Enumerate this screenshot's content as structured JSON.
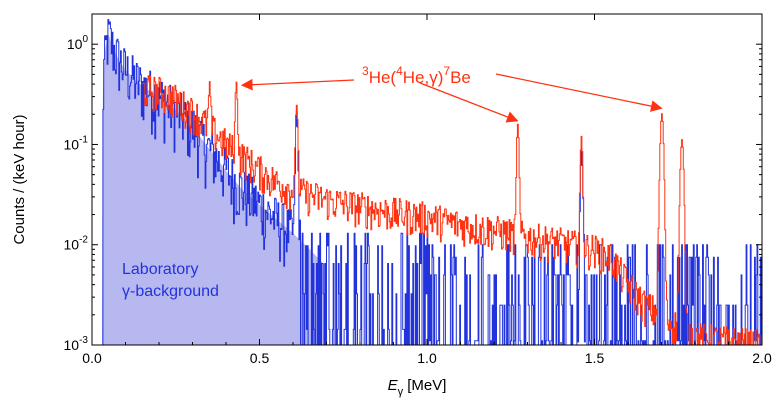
{
  "chart_data": {
    "type": "line",
    "xlabel": {
      "main": "E",
      "sub": "γ",
      "unit": "[MeV]"
    },
    "ylabel": "Counts / (keV hour)",
    "xlim": [
      0,
      2.0
    ],
    "ylim": [
      0.001,
      2.0
    ],
    "yscale": "log",
    "grid": false,
    "x_ticks": [
      {
        "value": 0.0,
        "label": "0.0"
      },
      {
        "value": 0.5,
        "label": "0.5"
      },
      {
        "value": 1.0,
        "label": "1.0"
      },
      {
        "value": 1.5,
        "label": "1.5"
      },
      {
        "value": 2.0,
        "label": "2.0"
      }
    ],
    "y_ticks": [
      {
        "value": 1,
        "base": "10",
        "exp": "0"
      },
      {
        "value": 0.1,
        "base": "10",
        "exp": "-1"
      },
      {
        "value": 0.01,
        "base": "10",
        "exp": "-2"
      },
      {
        "value": 0.001,
        "base": "10",
        "exp": "-3"
      }
    ],
    "reaction_label": {
      "parts": [
        {
          "t": "3",
          "sup": true
        },
        {
          "t": "He(",
          "sup": false
        },
        {
          "t": "4",
          "sup": true
        },
        {
          "t": "He,γ)",
          "sup": false
        },
        {
          "t": "7",
          "sup": true
        },
        {
          "t": "Be",
          "sup": false
        }
      ],
      "color": "#ff3311",
      "arrow_targets": [
        {
          "x": 0.43,
          "y": 0.34
        },
        {
          "x": 1.27,
          "y": 0.15
        },
        {
          "x": 1.7,
          "y": 0.2
        }
      ]
    },
    "background_label": {
      "lines": [
        "Laboratory",
        "γ-background"
      ],
      "color": "#2233dd"
    },
    "series": [
      {
        "name": "3He(4He,γ)7Be",
        "color": "#ff3311",
        "x_start": 0.15,
        "continuum": [
          [
            0.15,
            0.36
          ],
          [
            0.2,
            0.34
          ],
          [
            0.25,
            0.28
          ],
          [
            0.3,
            0.21
          ],
          [
            0.35,
            0.15
          ],
          [
            0.4,
            0.1
          ],
          [
            0.45,
            0.075
          ],
          [
            0.5,
            0.055
          ],
          [
            0.55,
            0.042
          ],
          [
            0.6,
            0.035
          ],
          [
            0.7,
            0.028
          ],
          [
            0.8,
            0.024
          ],
          [
            0.9,
            0.021
          ],
          [
            1.0,
            0.019
          ],
          [
            1.1,
            0.016
          ],
          [
            1.2,
            0.014
          ],
          [
            1.3,
            0.012
          ],
          [
            1.4,
            0.0105
          ],
          [
            1.5,
            0.009
          ],
          [
            1.55,
            0.0075
          ],
          [
            1.6,
            0.004
          ],
          [
            1.65,
            0.0025
          ],
          [
            1.7,
            0.002
          ],
          [
            1.75,
            0.0015
          ],
          [
            1.8,
            0.0012
          ],
          [
            2.0,
            0.001
          ]
        ],
        "peaks": [
          {
            "x": 0.35,
            "y": 0.22
          },
          {
            "x": 0.43,
            "y": 0.33
          },
          {
            "x": 0.61,
            "y": 0.22
          },
          {
            "x": 1.27,
            "y": 0.15
          },
          {
            "x": 1.46,
            "y": 0.11
          },
          {
            "x": 1.7,
            "y": 0.2
          },
          {
            "x": 1.76,
            "y": 0.11
          }
        ]
      },
      {
        "name": "Laboratory γ-background",
        "color": "#2233dd",
        "fill": "#b8b8f0",
        "x_start": 0.03,
        "continuum": [
          [
            0.03,
            0.0
          ],
          [
            0.035,
            0.6
          ],
          [
            0.04,
            0.9
          ],
          [
            0.045,
            1.1
          ],
          [
            0.05,
            1.25
          ],
          [
            0.06,
            0.95
          ],
          [
            0.08,
            0.7
          ],
          [
            0.1,
            0.55
          ],
          [
            0.15,
            0.38
          ],
          [
            0.2,
            0.3
          ],
          [
            0.25,
            0.22
          ],
          [
            0.3,
            0.15
          ],
          [
            0.35,
            0.09
          ],
          [
            0.4,
            0.055
          ],
          [
            0.45,
            0.035
          ],
          [
            0.5,
            0.025
          ],
          [
            0.55,
            0.018
          ],
          [
            0.6,
            0.013
          ],
          [
            0.65,
            0.009
          ],
          [
            0.7,
            0.006
          ],
          [
            0.8,
            0.0045
          ],
          [
            0.9,
            0.0035
          ],
          [
            1.0,
            0.003
          ],
          [
            1.2,
            0.0025
          ],
          [
            1.5,
            0.0022
          ],
          [
            1.7,
            0.002
          ],
          [
            2.0,
            0.0018
          ]
        ],
        "peaks": [
          {
            "x": 0.61,
            "y": 0.2
          },
          {
            "x": 1.46,
            "y": 0.09
          }
        ]
      }
    ]
  }
}
